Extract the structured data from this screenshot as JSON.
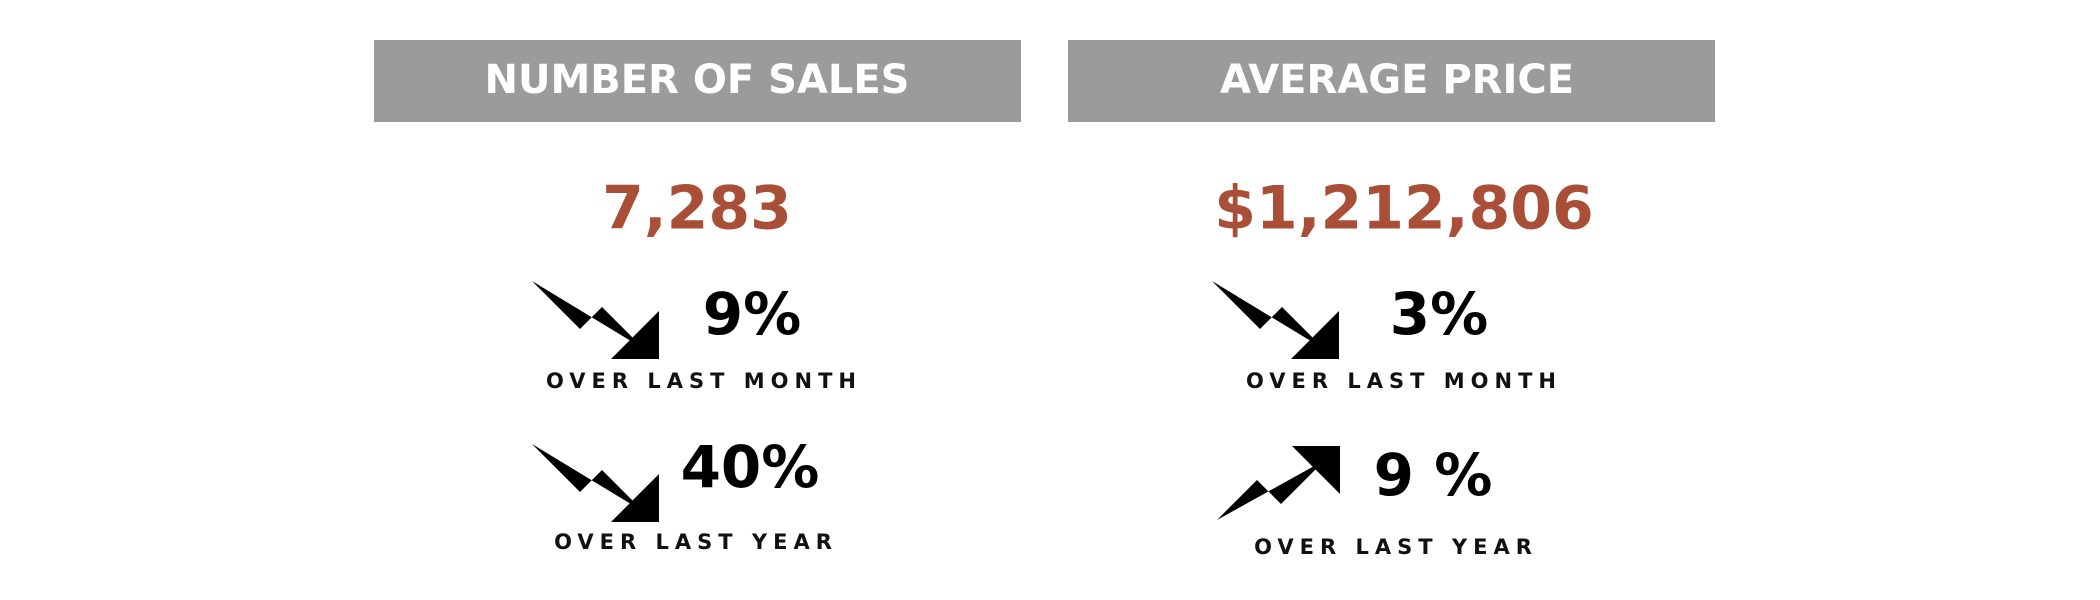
{
  "panels": [
    {
      "header": "NUMBER OF SALES",
      "value": "7,283",
      "stats": [
        {
          "change": "9%",
          "label": "OVER LAST MONTH"
        },
        {
          "change": "40%",
          "label": "OVER LAST YEAR"
        }
      ]
    },
    {
      "header": "AVERAGE PRICE",
      "value": "$1,212,806",
      "stats": [
        {
          "change": "3%",
          "label": "OVER LAST MONTH"
        },
        {
          "change": "9 %",
          "label": "OVER LAST YEAR"
        }
      ]
    }
  ]
}
